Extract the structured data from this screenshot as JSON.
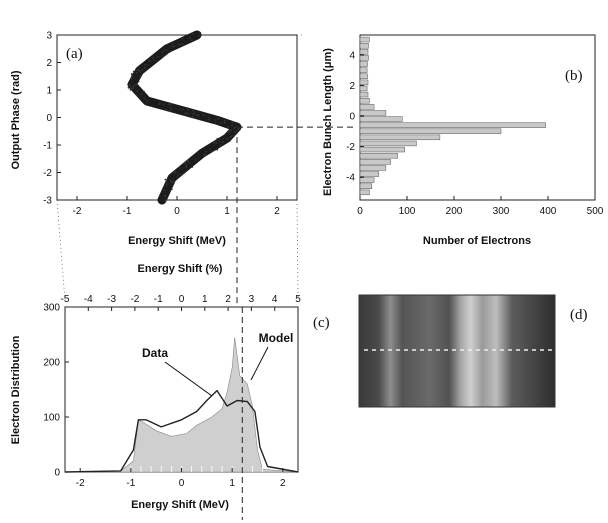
{
  "chart_data": [
    {
      "panel": "(a)",
      "type": "scatter",
      "xlabel": "Energy Shift (MeV)",
      "ylabel": "Output Phase (rad)",
      "xlim": [
        -2.4,
        2.4
      ],
      "ylim": [
        -3,
        3
      ],
      "xticks": [
        "-2",
        "-1",
        "0",
        "1",
        "2"
      ],
      "yticks": [
        "-3",
        "-2",
        "-1",
        "0",
        "1",
        "2",
        "3"
      ],
      "curve": [
        {
          "x": 0.4,
          "y": 3.0
        },
        {
          "x": -0.2,
          "y": 2.5
        },
        {
          "x": -0.75,
          "y": 1.7
        },
        {
          "x": -0.9,
          "y": 1.2
        },
        {
          "x": -0.6,
          "y": 0.6
        },
        {
          "x": 0.2,
          "y": 0.2
        },
        {
          "x": 0.8,
          "y": -0.1
        },
        {
          "x": 1.2,
          "y": -0.35
        },
        {
          "x": 1.0,
          "y": -0.75
        },
        {
          "x": 0.5,
          "y": -1.3
        },
        {
          "x": -0.1,
          "y": -2.2
        },
        {
          "x": -0.3,
          "y": -3.0
        }
      ],
      "guide_lines": {
        "x": 1.2,
        "y": -0.35
      }
    },
    {
      "panel": "(b)",
      "type": "bar",
      "orientation": "horizontal",
      "xlabel": "Number of Electrons",
      "ylabel": "Electron Bunch Length (μm)",
      "xlim": [
        0,
        500
      ],
      "ylim": [
        -5.5,
        5.3
      ],
      "xticks": [
        "0",
        "100",
        "200",
        "300",
        "400",
        "500"
      ],
      "yticks": [
        "-4",
        "-2",
        "0",
        "2",
        "4"
      ],
      "y": [
        5.0,
        4.6,
        4.2,
        3.8,
        3.4,
        3.0,
        2.6,
        2.2,
        1.8,
        1.4,
        1.0,
        0.6,
        0.2,
        -0.2,
        -0.6,
        -1.0,
        -1.4,
        -1.8,
        -2.2,
        -2.6,
        -3.0,
        -3.4,
        -3.8,
        -4.2,
        -4.6,
        -5.0
      ],
      "values": [
        20,
        18,
        17,
        18,
        16,
        15,
        16,
        17,
        15,
        17,
        20,
        30,
        55,
        90,
        395,
        300,
        170,
        120,
        95,
        80,
        65,
        55,
        40,
        30,
        25,
        20
      ]
    },
    {
      "panel": "(c)",
      "type": "area",
      "xlabel": "Energy Shift (MeV)",
      "ylabel": "Electron Distribution",
      "top_xlabel": "Energy Shift (%)",
      "xlim": [
        -2.3,
        2.3
      ],
      "ylim": [
        0,
        300
      ],
      "xticks": [
        "-2",
        "-1",
        "0",
        "1",
        "2"
      ],
      "top_xticks": [
        "-5",
        "-4",
        "-3",
        "-2",
        "-1",
        "0",
        "1",
        "2",
        "3",
        "4",
        "5"
      ],
      "yticks": [
        "0",
        "100",
        "200",
        "300"
      ],
      "annotations": [
        "Data",
        "Model"
      ],
      "series": [
        {
          "name": "Data",
          "x": [
            -2.3,
            -1.2,
            -0.95,
            -0.85,
            -0.75,
            -0.5,
            -0.2,
            0.1,
            0.3,
            0.6,
            0.8,
            0.9,
            1.0,
            1.05,
            1.15,
            1.3,
            1.4,
            1.5,
            1.6,
            2.3
          ],
          "y": [
            0,
            2,
            20,
            95,
            90,
            75,
            65,
            70,
            85,
            100,
            115,
            145,
            190,
            245,
            175,
            160,
            120,
            40,
            5,
            0
          ]
        },
        {
          "name": "Model",
          "x": [
            -2.3,
            -1.2,
            -0.95,
            -0.85,
            -0.7,
            -0.4,
            0.0,
            0.3,
            0.5,
            0.7,
            0.9,
            1.1,
            1.3,
            1.45,
            1.55,
            1.7,
            2.3
          ],
          "y": [
            0,
            2,
            40,
            95,
            95,
            82,
            95,
            110,
            130,
            148,
            120,
            130,
            128,
            110,
            45,
            10,
            0
          ]
        }
      ],
      "guide_line_x": 1.2
    },
    {
      "panel": "(d)",
      "type": "image"
    }
  ]
}
